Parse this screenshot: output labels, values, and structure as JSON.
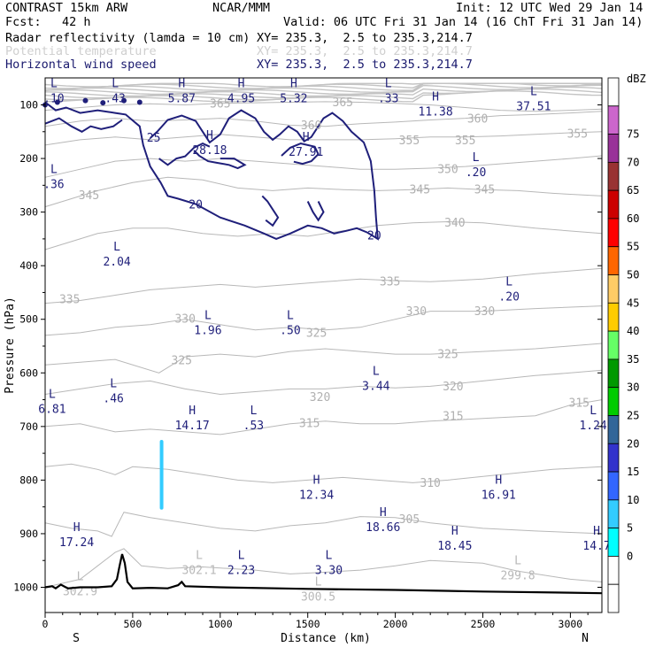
{
  "header": {
    "model": "CONTRAST 15km ARW",
    "source": "NCAR/MMM",
    "init": "Init: 12 UTC Wed 29 Jan 14",
    "fcst_label": "Fcst:",
    "fcst_value": "42 h",
    "valid": "Valid: 06 UTC Fri 31 Jan 14 (16 ChT Fri 31 Jan 14)",
    "fields": [
      {
        "name": "Radar reflectivity (lamda = 10 cm)",
        "xy": "XY= 235.3,  2.5 to 235.3,214.7"
      },
      {
        "name": "Potential temperature",
        "xy": "XY= 235.3,  2.5 to 235.3,214.7"
      },
      {
        "name": "Horizontal wind speed",
        "xy": "XY= 235.3,  2.5 to 235.3,214.7"
      }
    ]
  },
  "chart_data": {
    "type": "cross-section contour",
    "xlabel": "Distance (km)",
    "ylabel": "Pressure (hPa)",
    "xlim": [
      0,
      3180
    ],
    "ylim_pressure": [
      1050,
      60
    ],
    "x_ticks": [
      "0",
      "500",
      "1000",
      "1500",
      "2000",
      "2500",
      "3000"
    ],
    "y_ticks": [
      "100",
      "200",
      "300",
      "400",
      "500",
      "600",
      "700",
      "800",
      "900",
      "1000"
    ],
    "x_end_labels": {
      "left": "S",
      "right": "N"
    },
    "colorbar": {
      "unit": "dBZ",
      "levels": [
        "-",
        "0",
        "5",
        "10",
        "15",
        "20",
        "25",
        "30",
        "35",
        "40",
        "45",
        "50",
        "55",
        "60",
        "65",
        "70",
        "75",
        ""
      ],
      "colors": [
        "#ffffff",
        "#ffffff",
        "#00ffff",
        "#33ccff",
        "#3366ff",
        "#3333cc",
        "#336699",
        "#00cc00",
        "#009900",
        "#66ff66",
        "#ffcc00",
        "#ffcc66",
        "#ff6600",
        "#ff0000",
        "#cc0000",
        "#993333",
        "#993399",
        "#cc66cc",
        "#ffffff"
      ]
    },
    "theta_labels": [
      {
        "text": "365",
        "x": 1000,
        "p": 97
      },
      {
        "text": "365",
        "x": 1700,
        "p": 94
      },
      {
        "text": "360",
        "x": 1520,
        "p": 137
      },
      {
        "text": "360",
        "x": 2470,
        "p": 125
      },
      {
        "text": "355",
        "x": 2080,
        "p": 165
      },
      {
        "text": "355",
        "x": 2400,
        "p": 165
      },
      {
        "text": "355",
        "x": 3040,
        "p": 153
      },
      {
        "text": "350",
        "x": 2300,
        "p": 219
      },
      {
        "text": "345",
        "x": 250,
        "p": 268
      },
      {
        "text": "345",
        "x": 2140,
        "p": 257
      },
      {
        "text": "345",
        "x": 2510,
        "p": 257
      },
      {
        "text": "340",
        "x": 2340,
        "p": 319
      },
      {
        "text": "335",
        "x": 140,
        "p": 462
      },
      {
        "text": "335",
        "x": 1970,
        "p": 429
      },
      {
        "text": "330",
        "x": 800,
        "p": 498
      },
      {
        "text": "330",
        "x": 2120,
        "p": 484
      },
      {
        "text": "330",
        "x": 2510,
        "p": 484
      },
      {
        "text": "325",
        "x": 1550,
        "p": 524
      },
      {
        "text": "325",
        "x": 780,
        "p": 576
      },
      {
        "text": "325",
        "x": 2300,
        "p": 564
      },
      {
        "text": "320",
        "x": 1570,
        "p": 644
      },
      {
        "text": "320",
        "x": 2330,
        "p": 624
      },
      {
        "text": "315",
        "x": 1510,
        "p": 693
      },
      {
        "text": "315",
        "x": 2330,
        "p": 680
      },
      {
        "text": "315",
        "x": 3050,
        "p": 655
      },
      {
        "text": "310",
        "x": 2200,
        "p": 804
      },
      {
        "text": "305",
        "x": 2080,
        "p": 872
      }
    ],
    "extrema": [
      {
        "type": "L",
        "value": ".10",
        "x": 50,
        "p": 80
      },
      {
        "type": "L",
        "value": ".43",
        "x": 400,
        "p": 80
      },
      {
        "type": "H",
        "value": "5.87",
        "x": 780,
        "p": 80
      },
      {
        "type": "H",
        "value": "4.95",
        "x": 1120,
        "p": 80
      },
      {
        "type": "H",
        "value": "5.32",
        "x": 1420,
        "p": 80
      },
      {
        "type": "L",
        "value": ".33",
        "x": 1960,
        "p": 80
      },
      {
        "type": "H",
        "value": "11.38",
        "x": 2230,
        "p": 105
      },
      {
        "type": "L",
        "value": "37.51",
        "x": 2790,
        "p": 95
      },
      {
        "type": "H",
        "value": "28.18",
        "x": 940,
        "p": 177
      },
      {
        "type": "H",
        "value": "27.91",
        "x": 1490,
        "p": 180
      },
      {
        "type": "L",
        "value": ".20",
        "x": 2460,
        "p": 218
      },
      {
        "type": "L",
        "value": ".36",
        "x": 50,
        "p": 240
      },
      {
        "type": "L",
        "value": "2.04",
        "x": 410,
        "p": 385
      },
      {
        "type": "L",
        "value": ".20",
        "x": 2650,
        "p": 450
      },
      {
        "type": "L",
        "value": "1.96",
        "x": 930,
        "p": 513
      },
      {
        "type": "L",
        "value": ".50",
        "x": 1400,
        "p": 513
      },
      {
        "type": "L",
        "value": "3.44",
        "x": 1890,
        "p": 617
      },
      {
        "type": "L",
        "value": ".46",
        "x": 390,
        "p": 640
      },
      {
        "type": "L",
        "value": "6.81",
        "x": 40,
        "p": 660
      },
      {
        "type": "H",
        "value": "14.17",
        "x": 840,
        "p": 690
      },
      {
        "type": "L",
        "value": ".53",
        "x": 1190,
        "p": 690
      },
      {
        "type": "L",
        "value": "1.24",
        "x": 3130,
        "p": 690
      },
      {
        "type": "H",
        "value": "12.34",
        "x": 1550,
        "p": 820
      },
      {
        "type": "H",
        "value": "16.91",
        "x": 2590,
        "p": 820
      },
      {
        "type": "H",
        "value": "18.66",
        "x": 1930,
        "p": 880
      },
      {
        "type": "H",
        "value": "17.24",
        "x": 180,
        "p": 908
      },
      {
        "type": "H",
        "value": "18.45",
        "x": 2340,
        "p": 915
      },
      {
        "type": "H",
        "value": "14.7",
        "x": 3150,
        "p": 915
      },
      {
        "type": "L",
        "value": "2.23",
        "x": 1120,
        "p": 960
      },
      {
        "type": "L",
        "value": "3.30",
        "x": 1620,
        "p": 960
      },
      {
        "type": "L",
        "value": "302.9",
        "x": 200,
        "p": 1000
      },
      {
        "type": "L",
        "value": "302.1",
        "x": 880,
        "p": 960
      },
      {
        "type": "L",
        "value": "299.8",
        "x": 2700,
        "p": 970
      },
      {
        "type": "L",
        "value": "300.5",
        "x": 1560,
        "p": 1010
      }
    ],
    "wind_contour_labels": [
      {
        "text": "25",
        "x": 620,
        "p": 160
      },
      {
        "text": "20",
        "x": 860,
        "p": 285
      },
      {
        "text": "20",
        "x": 1880,
        "p": 343
      }
    ]
  }
}
